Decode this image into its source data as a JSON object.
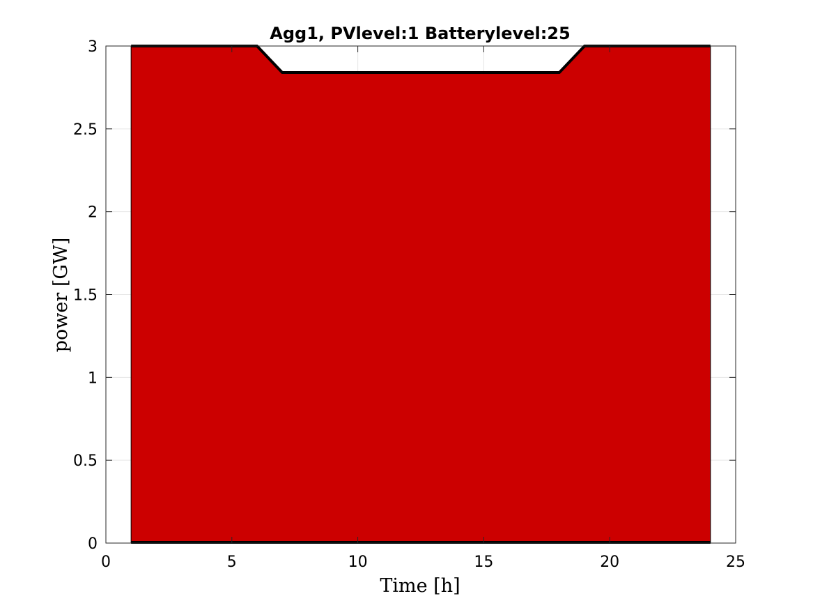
{
  "chart_data": {
    "type": "area",
    "title": "Agg1, PVlevel:1 Batterylevel:25",
    "xlabel": "Time [h]",
    "ylabel": "power [GW]",
    "xlim": [
      0,
      25
    ],
    "ylim": [
      0,
      3
    ],
    "xticks": [
      0,
      5,
      10,
      15,
      20,
      25
    ],
    "xtick_labels": [
      "0",
      "5",
      "10",
      "15",
      "20",
      "25"
    ],
    "yticks": [
      0,
      0.5,
      1,
      1.5,
      2,
      2.5,
      3
    ],
    "ytick_labels": [
      "0",
      "0.5",
      "1",
      "1.5",
      "2",
      "2.5",
      "3"
    ],
    "grid": true,
    "x": [
      1,
      2,
      3,
      4,
      5,
      6,
      7,
      8,
      9,
      10,
      11,
      12,
      13,
      14,
      15,
      16,
      17,
      18,
      19,
      20,
      21,
      22,
      23,
      24
    ],
    "series": [
      {
        "color": "#cc0000",
        "values": [
          3,
          3,
          3,
          3,
          3,
          3,
          2.84,
          2.84,
          2.84,
          2.84,
          2.84,
          2.84,
          2.84,
          2.84,
          2.84,
          2.84,
          2.84,
          2.84,
          3,
          3,
          3,
          3,
          3,
          3
        ]
      }
    ],
    "outline_color": "#000000"
  }
}
